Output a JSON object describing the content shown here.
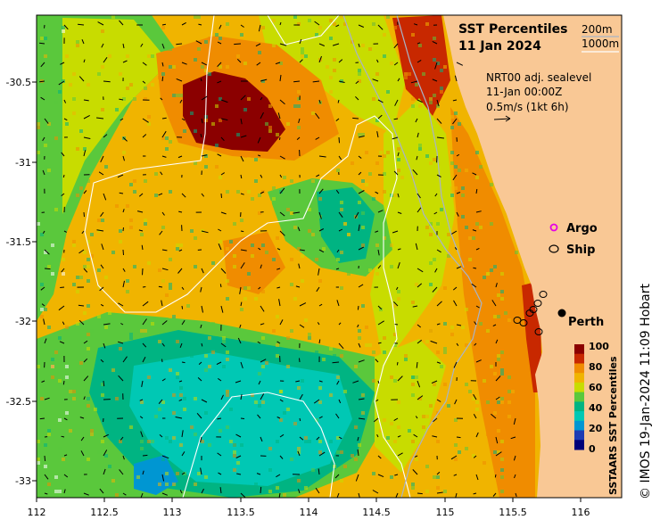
{
  "title": "SST Percentiles",
  "date": "11 Jan 2024",
  "contour_legend": {
    "c1": "200m",
    "c2": "1000m"
  },
  "current_info": {
    "product": "NRT00 adj. sealevel",
    "time": "11-Jan 00:00Z",
    "scale": "0.5m/s (1kt 6h)"
  },
  "legend": {
    "argo": "Argo",
    "ship": "Ship"
  },
  "city": "Perth",
  "colorbar": {
    "title": "SSTAARS SST Percentiles",
    "ticks": [
      "100",
      "80",
      "60",
      "40",
      "20",
      "0"
    ]
  },
  "credit": "© IMOS 19-Jan-2024 11:09 Hobart",
  "axes": {
    "x_ticks": [
      "112",
      "112.5",
      "113",
      "113.5",
      "114",
      "114.5",
      "115",
      "115.5",
      "116"
    ],
    "y_ticks": [
      "-30.5",
      "-31",
      "-31.5",
      "-32",
      "-32.5",
      "-33"
    ]
  },
  "colors": {
    "land": "#f9c895",
    "p100": "#8b0000",
    "p90": "#c82800",
    "p80": "#f08c00",
    "p70": "#f0b400",
    "p60": "#c8dc00",
    "p50": "#5ac83c",
    "p40": "#00b482",
    "p30": "#00c8b4",
    "p20": "#0096d2",
    "p10": "#1e3cb4",
    "p0": "#000078",
    "contour_200": "#a8b4c8",
    "contour_1000": "#ffffff",
    "argo": "#e600e6"
  }
}
